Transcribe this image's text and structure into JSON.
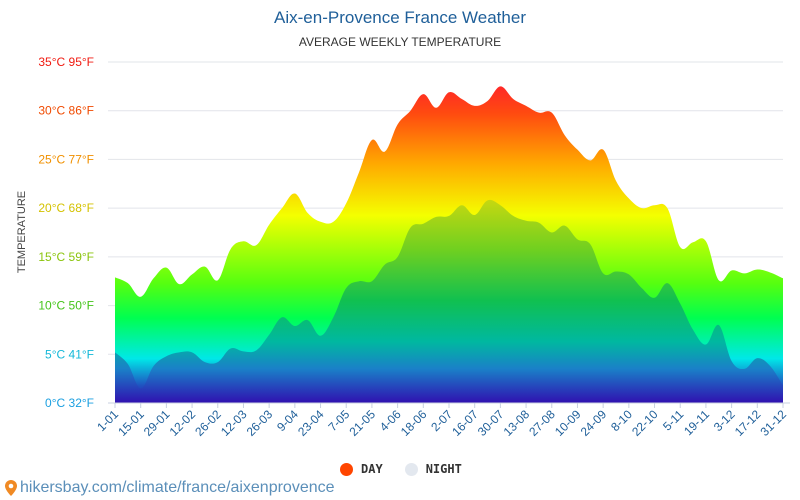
{
  "title": "Aix-en-Provence France Weather",
  "subtitle": "AVERAGE WEEKLY TEMPERATURE",
  "footer": {
    "text": "hikersbay.com/climate/france/aixenprovence",
    "icon": "map-pin-icon"
  },
  "legend": [
    {
      "label": "DAY",
      "color": "#ff4500"
    },
    {
      "label": "NIGHT",
      "color": "#e3e8ef"
    }
  ],
  "chart_data": {
    "type": "area",
    "title": "Aix-en-Provence France Weather",
    "subtitle": "AVERAGE WEEKLY TEMPERATURE",
    "ylabel": "TEMPERATURE",
    "ylim": [
      0,
      35
    ],
    "grid": true,
    "legend_position": "bottom",
    "y_ticks": [
      {
        "value": 0,
        "label": "0°C 32°F",
        "color": "#1a9fe0"
      },
      {
        "value": 5,
        "label": "5°C 41°F",
        "color": "#14b8d8"
      },
      {
        "value": 10,
        "label": "10°C 50°F",
        "color": "#44c41a"
      },
      {
        "value": 15,
        "label": "15°C 59°F",
        "color": "#8ac40c"
      },
      {
        "value": 20,
        "label": "20°C 68°F",
        "color": "#d4c200"
      },
      {
        "value": 25,
        "label": "25°C 77°F",
        "color": "#f09000"
      },
      {
        "value": 30,
        "label": "30°C 86°F",
        "color": "#f04a00"
      },
      {
        "value": 35,
        "label": "35°C 95°F",
        "color": "#f01a10"
      }
    ],
    "x_tick_labels": [
      "1-01",
      "15-01",
      "29-01",
      "12-02",
      "26-02",
      "12-03",
      "26-03",
      "9-04",
      "23-04",
      "7-05",
      "21-05",
      "4-06",
      "18-06",
      "2-07",
      "16-07",
      "30-07",
      "13-08",
      "27-08",
      "10-09",
      "24-09",
      "8-10",
      "22-10",
      "5-11",
      "19-11",
      "3-12",
      "17-12",
      "31-12"
    ],
    "series": [
      {
        "name": "DAY",
        "values": [
          12.9,
          12.3,
          10.9,
          12.8,
          13.9,
          12.2,
          13.2,
          14.0,
          12.6,
          15.8,
          16.6,
          16.2,
          18.3,
          20.0,
          21.5,
          19.5,
          18.6,
          18.6,
          20.5,
          23.7,
          27.0,
          25.8,
          28.6,
          30.0,
          31.7,
          30.3,
          31.9,
          31.2,
          30.5,
          31.0,
          32.5,
          31.2,
          30.5,
          29.8,
          29.8,
          27.5,
          26.0,
          24.9,
          26.0,
          22.8,
          21.0,
          20.0,
          20.3,
          20.0,
          16.0,
          16.5,
          16.6,
          12.6,
          13.6,
          13.3,
          13.7,
          13.4,
          12.8
        ]
      },
      {
        "name": "NIGHT",
        "values": [
          5.2,
          4.0,
          1.5,
          3.8,
          4.8,
          5.2,
          5.2,
          4.2,
          4.2,
          5.6,
          5.3,
          5.4,
          7.0,
          8.8,
          7.9,
          8.5,
          6.9,
          8.8,
          11.8,
          12.5,
          12.5,
          14.2,
          15.0,
          18.0,
          18.4,
          19.1,
          19.2,
          20.3,
          19.3,
          20.8,
          20.3,
          19.2,
          18.7,
          18.5,
          17.5,
          18.2,
          16.8,
          16.3,
          13.3,
          13.5,
          13.2,
          11.8,
          10.8,
          12.3,
          10.2,
          7.5,
          6.0,
          8.0,
          4.3,
          3.5,
          4.6,
          3.8,
          1.8
        ]
      }
    ]
  }
}
